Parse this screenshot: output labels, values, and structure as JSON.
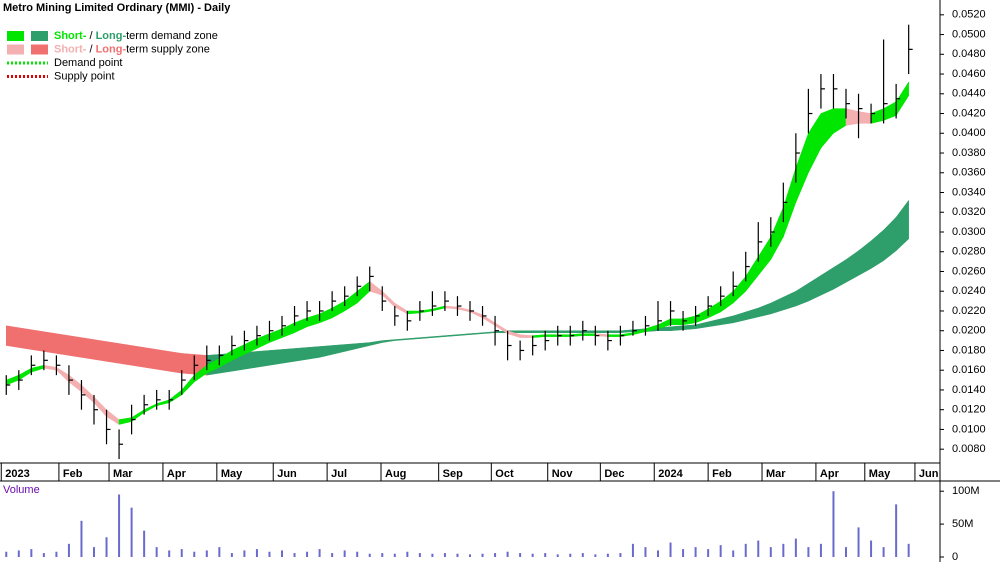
{
  "chart_data": {
    "type": "ohlc_zones",
    "title": "Metro Mining Limited Ordinary (MMI) - Daily",
    "legend": [
      {
        "parts": [
          "Short-",
          " / ",
          "Long-",
          "term demand zone"
        ],
        "colors": [
          "#00e600",
          "#2e9e6a"
        ],
        "kind": "zone"
      },
      {
        "parts": [
          "Short-",
          " / ",
          "Long-",
          "term supply zone"
        ],
        "colors": [
          "#f4b0b0",
          "#f07070"
        ],
        "kind": "zone"
      },
      {
        "parts": [
          "Demand point"
        ],
        "colors": [
          "#00e600"
        ],
        "kind": "point"
      },
      {
        "parts": [
          "Supply point"
        ],
        "colors": [
          "#e00000"
        ],
        "kind": "point"
      }
    ],
    "xlim": [
      -0.5,
      74.5
    ],
    "xticks": [
      {
        "value": -0.4,
        "label": "2023"
      },
      {
        "value": 4.2,
        "label": "Feb"
      },
      {
        "value": 8.2,
        "label": "Mar"
      },
      {
        "value": 12.5,
        "label": "Apr"
      },
      {
        "value": 16.8,
        "label": "May"
      },
      {
        "value": 21.3,
        "label": "Jun"
      },
      {
        "value": 25.6,
        "label": "Jul"
      },
      {
        "value": 29.9,
        "label": "Aug"
      },
      {
        "value": 34.5,
        "label": "Sep"
      },
      {
        "value": 38.7,
        "label": "Oct"
      },
      {
        "value": 43.2,
        "label": "Nov"
      },
      {
        "value": 47.4,
        "label": "Dec"
      },
      {
        "value": 51.7,
        "label": "2024"
      },
      {
        "value": 56.0,
        "label": "Feb"
      },
      {
        "value": 60.3,
        "label": "Mar"
      },
      {
        "value": 64.6,
        "label": "Apr"
      },
      {
        "value": 68.5,
        "label": "May"
      },
      {
        "value": 72.5,
        "label": "Jun"
      }
    ],
    "ylim": [
      0.0066,
      0.0535
    ],
    "yticks": [
      {
        "value": 0.008,
        "label": "0.0080"
      },
      {
        "value": 0.01,
        "label": "0.0100"
      },
      {
        "value": 0.012,
        "label": "0.0120"
      },
      {
        "value": 0.014,
        "label": "0.0140"
      },
      {
        "value": 0.016,
        "label": "0.0160"
      },
      {
        "value": 0.018,
        "label": "0.0180"
      },
      {
        "value": 0.02,
        "label": "0.0200"
      },
      {
        "value": 0.022,
        "label": "0.0220"
      },
      {
        "value": 0.024,
        "label": "0.0240"
      },
      {
        "value": 0.026,
        "label": "0.0260"
      },
      {
        "value": 0.028,
        "label": "0.0280"
      },
      {
        "value": 0.03,
        "label": "0.0300"
      },
      {
        "value": 0.032,
        "label": "0.0320"
      },
      {
        "value": 0.034,
        "label": "0.0340"
      },
      {
        "value": 0.036,
        "label": "0.0360"
      },
      {
        "value": 0.038,
        "label": "0.0380"
      },
      {
        "value": 0.04,
        "label": "0.0400"
      },
      {
        "value": 0.042,
        "label": "0.0420"
      },
      {
        "value": 0.044,
        "label": "0.0440"
      },
      {
        "value": 0.046,
        "label": "0.0460"
      },
      {
        "value": 0.048,
        "label": "0.0480"
      },
      {
        "value": 0.05,
        "label": "0.0500"
      },
      {
        "value": 0.052,
        "label": "0.0520"
      }
    ],
    "high": [
      0.0155,
      0.016,
      0.0175,
      0.018,
      0.0175,
      0.0165,
      0.015,
      0.0135,
      0.012,
      0.01,
      0.0125,
      0.0135,
      0.014,
      0.014,
      0.016,
      0.0175,
      0.0185,
      0.0185,
      0.0195,
      0.02,
      0.0205,
      0.021,
      0.0215,
      0.0225,
      0.023,
      0.023,
      0.024,
      0.0245,
      0.0255,
      0.0265,
      0.0245,
      0.0225,
      0.022,
      0.023,
      0.024,
      0.024,
      0.0235,
      0.023,
      0.0225,
      0.0215,
      0.02,
      0.019,
      0.0195,
      0.02,
      0.0205,
      0.0205,
      0.021,
      0.0205,
      0.02,
      0.0205,
      0.021,
      0.0215,
      0.023,
      0.023,
      0.022,
      0.0225,
      0.0235,
      0.0245,
      0.026,
      0.028,
      0.031,
      0.0315,
      0.035,
      0.04,
      0.0445,
      0.046,
      0.046,
      0.0445,
      0.044,
      0.043,
      0.0495,
      0.045,
      0.051
    ],
    "low": [
      0.0135,
      0.014,
      0.0155,
      0.016,
      0.0155,
      0.0135,
      0.012,
      0.0105,
      0.0085,
      0.007,
      0.0095,
      0.0115,
      0.012,
      0.012,
      0.0135,
      0.015,
      0.016,
      0.0165,
      0.0175,
      0.018,
      0.0185,
      0.019,
      0.0195,
      0.0205,
      0.021,
      0.021,
      0.022,
      0.0225,
      0.0235,
      0.024,
      0.022,
      0.0205,
      0.02,
      0.021,
      0.0215,
      0.022,
      0.0215,
      0.021,
      0.0205,
      0.0185,
      0.017,
      0.017,
      0.0175,
      0.018,
      0.0185,
      0.0185,
      0.019,
      0.0185,
      0.018,
      0.0185,
      0.0195,
      0.0195,
      0.02,
      0.0205,
      0.02,
      0.0205,
      0.0215,
      0.0225,
      0.0235,
      0.025,
      0.027,
      0.0285,
      0.031,
      0.035,
      0.04,
      0.0425,
      0.0425,
      0.0415,
      0.0395,
      0.041,
      0.041,
      0.0415,
      0.046
    ],
    "close": [
      0.0145,
      0.015,
      0.0165,
      0.017,
      0.0165,
      0.015,
      0.0135,
      0.012,
      0.01,
      0.0085,
      0.011,
      0.0125,
      0.013,
      0.013,
      0.015,
      0.0165,
      0.017,
      0.0175,
      0.0185,
      0.019,
      0.0195,
      0.02,
      0.0205,
      0.0215,
      0.022,
      0.022,
      0.023,
      0.0235,
      0.0245,
      0.0255,
      0.023,
      0.0215,
      0.021,
      0.022,
      0.0225,
      0.023,
      0.0225,
      0.022,
      0.0215,
      0.02,
      0.0185,
      0.018,
      0.0185,
      0.019,
      0.0195,
      0.0195,
      0.02,
      0.0195,
      0.019,
      0.0195,
      0.02,
      0.0205,
      0.021,
      0.022,
      0.021,
      0.0215,
      0.0225,
      0.0235,
      0.0245,
      0.0265,
      0.029,
      0.03,
      0.033,
      0.038,
      0.042,
      0.0445,
      0.0445,
      0.043,
      0.0425,
      0.042,
      0.043,
      0.0435,
      0.0485
    ],
    "short_upper": [
      0.015,
      0.0155,
      0.0162,
      0.0165,
      0.0163,
      0.0155,
      0.0145,
      0.0133,
      0.012,
      0.011,
      0.0112,
      0.012,
      0.0126,
      0.013,
      0.014,
      0.0155,
      0.0165,
      0.0172,
      0.018,
      0.0186,
      0.0192,
      0.0197,
      0.0202,
      0.0208,
      0.0213,
      0.0217,
      0.0223,
      0.023,
      0.024,
      0.025,
      0.024,
      0.0228,
      0.022,
      0.022,
      0.0222,
      0.0225,
      0.0224,
      0.0221,
      0.0216,
      0.0208,
      0.02,
      0.0196,
      0.0195,
      0.0196,
      0.0196,
      0.0196,
      0.0197,
      0.0197,
      0.0196,
      0.0196,
      0.0198,
      0.0202,
      0.0206,
      0.0212,
      0.0212,
      0.0215,
      0.0222,
      0.023,
      0.024,
      0.0255,
      0.0275,
      0.0295,
      0.0325,
      0.0365,
      0.04,
      0.042,
      0.0425,
      0.0425,
      0.0422,
      0.042,
      0.0425,
      0.0432,
      0.0452
    ],
    "short_lower": [
      0.0145,
      0.015,
      0.0158,
      0.0162,
      0.016,
      0.0148,
      0.0138,
      0.0127,
      0.0113,
      0.0105,
      0.0108,
      0.0117,
      0.0124,
      0.0127,
      0.0135,
      0.0148,
      0.0157,
      0.0163,
      0.017,
      0.0176,
      0.0182,
      0.0188,
      0.0193,
      0.0198,
      0.0204,
      0.0208,
      0.0213,
      0.022,
      0.0228,
      0.024,
      0.0236,
      0.0224,
      0.0217,
      0.0218,
      0.022,
      0.0223,
      0.0222,
      0.0219,
      0.0213,
      0.0205,
      0.0197,
      0.0193,
      0.0193,
      0.0194,
      0.0194,
      0.0194,
      0.0195,
      0.0195,
      0.0194,
      0.0194,
      0.0196,
      0.0199,
      0.0202,
      0.0206,
      0.0206,
      0.0208,
      0.0213,
      0.0219,
      0.0228,
      0.024,
      0.0256,
      0.0272,
      0.0295,
      0.033,
      0.036,
      0.0385,
      0.04,
      0.0408,
      0.041,
      0.041,
      0.0413,
      0.0418,
      0.0438
    ],
    "long_upper": [
      0.0205,
      0.0203,
      0.0201,
      0.0199,
      0.0197,
      0.0195,
      0.0193,
      0.0191,
      0.0189,
      0.0187,
      0.0185,
      0.0183,
      0.0181,
      0.0179,
      0.0177,
      0.0176,
      0.0175,
      0.0176,
      0.0177,
      0.0178,
      0.0179,
      0.018,
      0.0181,
      0.0182,
      0.0183,
      0.0184,
      0.0185,
      0.0186,
      0.0187,
      0.0188,
      0.019,
      0.0191,
      0.0192,
      0.0193,
      0.0194,
      0.0195,
      0.0196,
      0.0197,
      0.0198,
      0.0199,
      0.02,
      0.02,
      0.02,
      0.02,
      0.02,
      0.02,
      0.02,
      0.02,
      0.02,
      0.02,
      0.0201,
      0.0202,
      0.0203,
      0.0204,
      0.0205,
      0.0206,
      0.0209,
      0.0212,
      0.0215,
      0.0219,
      0.0223,
      0.0228,
      0.0234,
      0.024,
      0.0248,
      0.0256,
      0.0264,
      0.0272,
      0.0281,
      0.0291,
      0.0302,
      0.0315,
      0.0332
    ],
    "long_lower": [
      0.0185,
      0.0183,
      0.0181,
      0.0179,
      0.0177,
      0.0175,
      0.0173,
      0.0171,
      0.0169,
      0.0167,
      0.0165,
      0.0163,
      0.0161,
      0.0159,
      0.0157,
      0.0156,
      0.0155,
      0.0157,
      0.0159,
      0.0161,
      0.0163,
      0.0165,
      0.0167,
      0.0169,
      0.0171,
      0.0173,
      0.0176,
      0.0179,
      0.0182,
      0.0185,
      0.0188,
      0.019,
      0.0191,
      0.0192,
      0.0193,
      0.0194,
      0.0195,
      0.0196,
      0.0197,
      0.0198,
      0.0198,
      0.0198,
      0.0198,
      0.0198,
      0.0198,
      0.0198,
      0.0198,
      0.0198,
      0.0198,
      0.0198,
      0.0199,
      0.0199,
      0.02,
      0.02,
      0.0201,
      0.0202,
      0.0204,
      0.0206,
      0.0208,
      0.0211,
      0.0214,
      0.0217,
      0.0221,
      0.0225,
      0.023,
      0.0236,
      0.0242,
      0.0249,
      0.0256,
      0.0263,
      0.0271,
      0.0281,
      0.0293
    ],
    "volume_title": "Volume",
    "volume_color": "#6a6acd",
    "volume": [
      8000000,
      10000000,
      12000000,
      6000000,
      8000000,
      20000000,
      55000000,
      15000000,
      30000000,
      95000000,
      75000000,
      40000000,
      15000000,
      10000000,
      12000000,
      8000000,
      10000000,
      15000000,
      6000000,
      10000000,
      12000000,
      8000000,
      10000000,
      6000000,
      8000000,
      12000000,
      6000000,
      10000000,
      8000000,
      5000000,
      6000000,
      5000000,
      8000000,
      6000000,
      5000000,
      6000000,
      5000000,
      4000000,
      5000000,
      6000000,
      8000000,
      6000000,
      5000000,
      6000000,
      4000000,
      5000000,
      6000000,
      4000000,
      5000000,
      6000000,
      20000000,
      15000000,
      10000000,
      22000000,
      12000000,
      15000000,
      12000000,
      18000000,
      10000000,
      20000000,
      25000000,
      15000000,
      20000000,
      28000000,
      15000000,
      20000000,
      100000000,
      15000000,
      45000000,
      25000000,
      15000000,
      80000000,
      20000000
    ],
    "vlim": [
      0,
      114000000
    ],
    "vticks": [
      0,
      {
        "value": 50000000,
        "label": "50M"
      },
      {
        "value": 100000000,
        "label": "100M"
      }
    ]
  }
}
